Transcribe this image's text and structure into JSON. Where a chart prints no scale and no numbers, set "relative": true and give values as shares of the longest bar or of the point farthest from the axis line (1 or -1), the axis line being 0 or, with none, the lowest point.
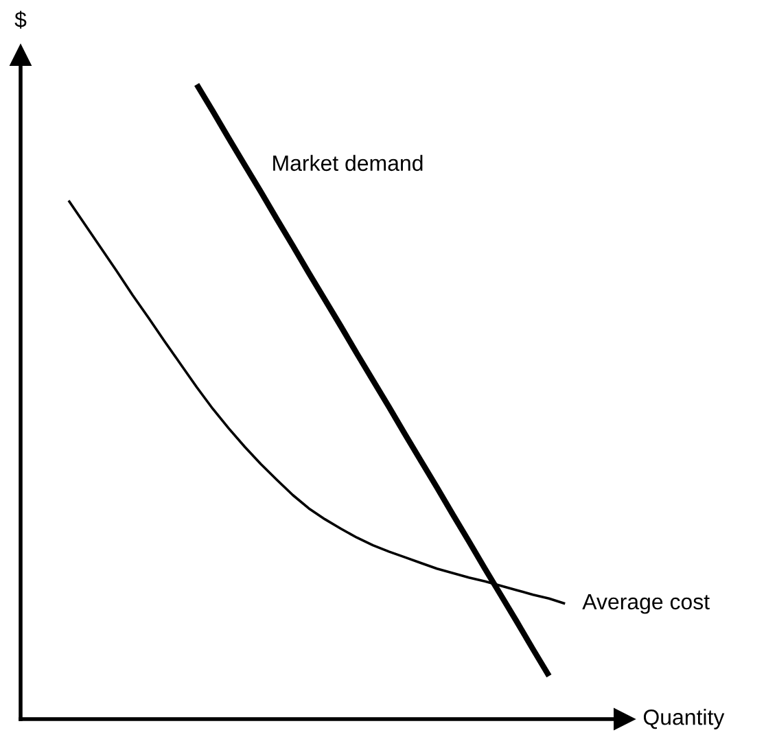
{
  "chart_data": {
    "type": "line",
    "relative": true,
    "xlabel": "Quantity",
    "ylabel": "$",
    "legend": false,
    "marker": "none",
    "line_style": "solid",
    "categories": [
      null,
      null,
      null,
      null,
      null,
      null,
      null,
      null,
      null,
      null,
      null,
      null,
      null,
      null,
      null,
      null,
      null,
      null,
      null,
      null,
      null,
      null,
      null,
      null,
      null,
      null,
      null,
      null,
      null,
      null,
      null,
      null,
      null,
      null,
      null
    ],
    "series": [
      {
        "name": "Market demand",
        "color": "#000000",
        "values": [
          null,
          null,
          null,
          null,
          null,
          null,
          null,
          null,
          null,
          null,
          null,
          1,
          0.958,
          0.915,
          0.873,
          0.831,
          0.788,
          0.746,
          0.703,
          0.661,
          0.619,
          0.576,
          0.534,
          0.492,
          0.449,
          0.407,
          0.365,
          0.322,
          0.28,
          0.237,
          0.195,
          0.153,
          0.11,
          0.068,
          null
        ]
      },
      {
        "name": "Average cost",
        "color": "#000000",
        "values": [
          null,
          null,
          null,
          0.817,
          0.78,
          0.743,
          0.706,
          0.668,
          0.632,
          0.595,
          0.559,
          0.523,
          0.489,
          0.458,
          0.429,
          0.402,
          0.377,
          0.353,
          0.332,
          0.315,
          0.3,
          0.286,
          0.274,
          0.264,
          0.255,
          0.246,
          0.237,
          0.23,
          0.223,
          0.217,
          0.21,
          0.203,
          0.196,
          0.19,
          0.182
        ]
      }
    ]
  }
}
